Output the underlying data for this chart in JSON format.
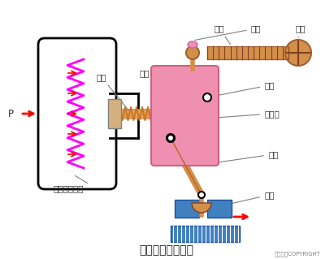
{
  "title": "增力型气动薄膜阀",
  "copyright": "东方仿真COPYRIGHT",
  "bg_color": "#ffffff",
  "labels": {
    "luo_gan": "螺杆",
    "luo_mu": "螺母",
    "shou_lun": "手轮",
    "zhi_dian": "支点",
    "fang_xing_ban": "力形板",
    "lian_gan": "连杆",
    "fa_gan": "阀杆",
    "tan_huang": "弹簧",
    "tui_gan": "推杆",
    "qi_dong": "气动薄膜阀头",
    "P_label": "P"
  },
  "colors": {
    "body_outline": "#000000",
    "spring_magenta": "#ff00ff",
    "spring_red_arrows": "#ff0000",
    "orange_part": "#e8a060",
    "pink_plate": "#f090b0",
    "blue_valve": "#4080c0",
    "rod_orange": "#d4904a",
    "red_arrow": "#ff0000",
    "label_color": "#404040",
    "screw_orange": "#d4904a"
  }
}
